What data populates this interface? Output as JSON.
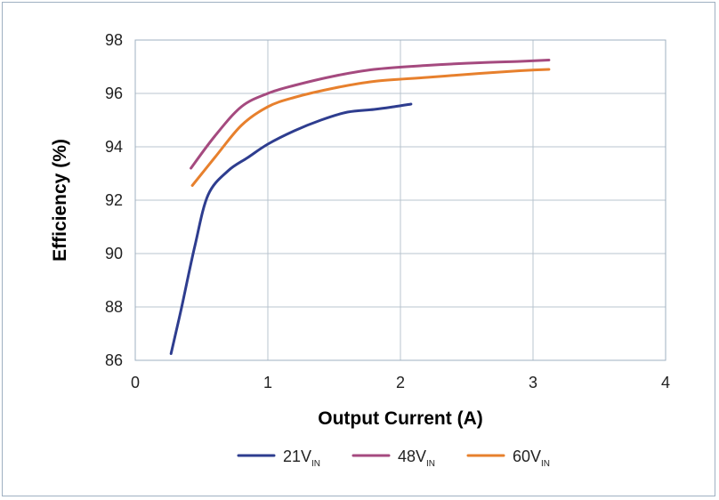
{
  "chart_data": {
    "type": "line",
    "title": "",
    "xlabel": "Output Current (A)",
    "ylabel": "Efficiency (%)",
    "xlim": [
      0,
      4
    ],
    "ylim": [
      86,
      98
    ],
    "x_ticks": [
      "0",
      "1",
      "2",
      "3",
      "4"
    ],
    "y_ticks": [
      "86",
      "88",
      "90",
      "92",
      "94",
      "96",
      "98"
    ],
    "grid": true,
    "legend_position": "bottom",
    "series": [
      {
        "name": "21V",
        "name_subscript": "IN",
        "color": "#2e3d8f",
        "points": [
          [
            0.27,
            86.25
          ],
          [
            0.35,
            88.0
          ],
          [
            0.45,
            90.3
          ],
          [
            0.55,
            92.2
          ],
          [
            0.7,
            93.1
          ],
          [
            0.85,
            93.6
          ],
          [
            1.0,
            94.1
          ],
          [
            1.2,
            94.6
          ],
          [
            1.4,
            95.0
          ],
          [
            1.6,
            95.3
          ],
          [
            1.8,
            95.4
          ],
          [
            1.95,
            95.5
          ],
          [
            2.08,
            95.6
          ]
        ]
      },
      {
        "name": "48V",
        "name_subscript": "IN",
        "color": "#a54a7f",
        "points": [
          [
            0.42,
            93.2
          ],
          [
            0.6,
            94.4
          ],
          [
            0.8,
            95.5
          ],
          [
            1.0,
            96.0
          ],
          [
            1.2,
            96.3
          ],
          [
            1.5,
            96.65
          ],
          [
            1.8,
            96.9
          ],
          [
            2.2,
            97.05
          ],
          [
            2.6,
            97.15
          ],
          [
            2.9,
            97.2
          ],
          [
            3.12,
            97.25
          ]
        ]
      },
      {
        "name": "60V",
        "name_subscript": "IN",
        "color": "#e7802d",
        "points": [
          [
            0.43,
            92.55
          ],
          [
            0.6,
            93.6
          ],
          [
            0.8,
            94.8
          ],
          [
            1.0,
            95.5
          ],
          [
            1.2,
            95.85
          ],
          [
            1.5,
            96.2
          ],
          [
            1.8,
            96.45
          ],
          [
            2.2,
            96.6
          ],
          [
            2.6,
            96.75
          ],
          [
            2.9,
            96.85
          ],
          [
            3.12,
            96.9
          ]
        ]
      }
    ]
  }
}
